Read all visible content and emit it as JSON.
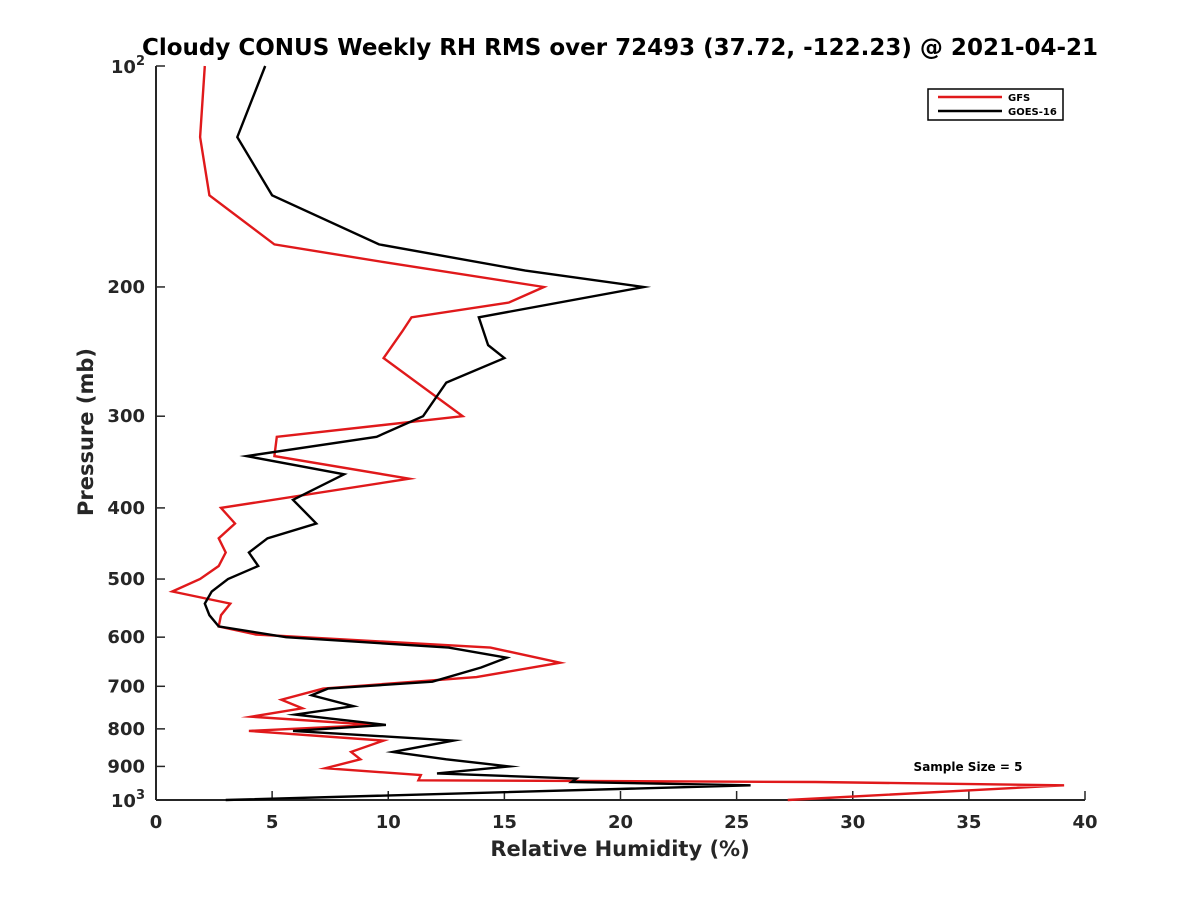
{
  "chart_data": {
    "type": "line",
    "title": "Cloudy CONUS Weekly RH RMS over 72493 (37.72, -122.23) @ 2021-04-21",
    "xlabel": "Relative Humidity (%)",
    "ylabel": "Pressure (mb)",
    "xlim": [
      0,
      40
    ],
    "ylim": [
      100,
      1000
    ],
    "y_scale": "log",
    "y_reversed": true,
    "xticks": [
      0,
      5,
      10,
      15,
      20,
      25,
      30,
      35,
      40
    ],
    "yticks": [
      {
        "value": 100,
        "base": "10",
        "exp": "2"
      },
      {
        "value": 200,
        "label": "200"
      },
      {
        "value": 300,
        "label": "300"
      },
      {
        "value": 400,
        "label": "400"
      },
      {
        "value": 500,
        "label": "500"
      },
      {
        "value": 600,
        "label": "600"
      },
      {
        "value": 700,
        "label": "700"
      },
      {
        "value": 800,
        "label": "800"
      },
      {
        "value": 900,
        "label": "900"
      },
      {
        "value": 1000,
        "base": "10",
        "exp": "3"
      }
    ],
    "grid": false,
    "legend_position": "top-right",
    "annotation": "Sample Size = 5",
    "series": [
      {
        "name": "GFS",
        "color": "#e0191b",
        "points": [
          [
            2.1,
            100
          ],
          [
            1.9,
            125
          ],
          [
            2.3,
            150
          ],
          [
            5.1,
            175
          ],
          [
            9.8,
            185
          ],
          [
            16.7,
            200
          ],
          [
            15.2,
            210
          ],
          [
            11.0,
            220
          ],
          [
            10.6,
            230
          ],
          [
            9.8,
            250
          ],
          [
            13.2,
            300
          ],
          [
            5.2,
            320
          ],
          [
            5.1,
            340
          ],
          [
            10.9,
            365
          ],
          [
            2.8,
            400
          ],
          [
            3.4,
            420
          ],
          [
            2.7,
            440
          ],
          [
            3.0,
            460
          ],
          [
            2.7,
            480
          ],
          [
            1.9,
            500
          ],
          [
            0.7,
            520
          ],
          [
            3.2,
            540
          ],
          [
            2.8,
            560
          ],
          [
            2.7,
            580
          ],
          [
            4.3,
            595
          ],
          [
            14.4,
            620
          ],
          [
            17.4,
            650
          ],
          [
            13.8,
            680
          ],
          [
            7.2,
            705
          ],
          [
            5.4,
            730
          ],
          [
            6.3,
            750
          ],
          [
            4.1,
            770
          ],
          [
            9.4,
            790
          ],
          [
            4.0,
            805
          ],
          [
            9.8,
            830
          ],
          [
            8.4,
            860
          ],
          [
            8.8,
            880
          ],
          [
            7.3,
            905
          ],
          [
            11.4,
            925
          ],
          [
            11.3,
            940
          ],
          [
            28.4,
            945
          ],
          [
            39.1,
            955
          ],
          [
            27.2,
            1000
          ]
        ]
      },
      {
        "name": "GOES-16",
        "color": "#000000",
        "points": [
          [
            4.7,
            100
          ],
          [
            3.5,
            125
          ],
          [
            5.0,
            150
          ],
          [
            9.6,
            175
          ],
          [
            15.9,
            190
          ],
          [
            21.0,
            200
          ],
          [
            13.9,
            220
          ],
          [
            14.3,
            240
          ],
          [
            15.0,
            250
          ],
          [
            12.5,
            270
          ],
          [
            11.5,
            300
          ],
          [
            9.5,
            320
          ],
          [
            3.9,
            340
          ],
          [
            8.1,
            360
          ],
          [
            5.9,
            390
          ],
          [
            6.9,
            420
          ],
          [
            4.8,
            440
          ],
          [
            4.0,
            460
          ],
          [
            4.4,
            480
          ],
          [
            3.1,
            500
          ],
          [
            2.4,
            520
          ],
          [
            2.1,
            540
          ],
          [
            2.3,
            560
          ],
          [
            2.7,
            580
          ],
          [
            5.6,
            600
          ],
          [
            12.6,
            620
          ],
          [
            15.1,
            640
          ],
          [
            14.0,
            660
          ],
          [
            11.9,
            690
          ],
          [
            7.4,
            705
          ],
          [
            6.7,
            720
          ],
          [
            8.5,
            745
          ],
          [
            6.0,
            765
          ],
          [
            9.9,
            790
          ],
          [
            5.9,
            805
          ],
          [
            12.8,
            830
          ],
          [
            10.2,
            860
          ],
          [
            12.5,
            880
          ],
          [
            15.2,
            900
          ],
          [
            12.1,
            920
          ],
          [
            18.1,
            935
          ],
          [
            17.9,
            945
          ],
          [
            25.6,
            955
          ],
          [
            3.0,
            1000
          ]
        ]
      }
    ]
  }
}
